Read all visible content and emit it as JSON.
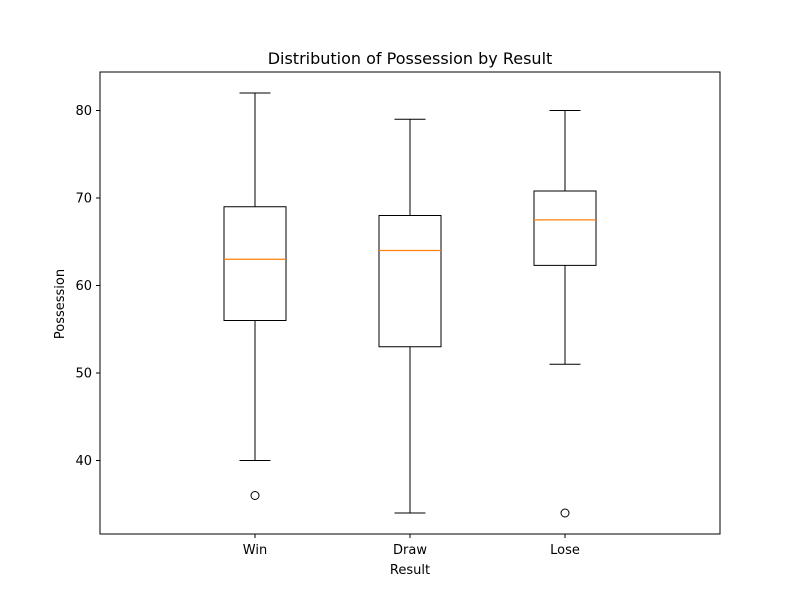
{
  "chart_data": {
    "type": "box",
    "title": "Distribution of Possession by Result",
    "xlabel": "Result",
    "ylabel": "Possession",
    "ylim": [
      31.6,
      84.4
    ],
    "yticks": [
      40,
      50,
      60,
      70,
      80
    ],
    "ytick_labels": [
      "40",
      "50",
      "60",
      "70",
      "80"
    ],
    "grid": false,
    "categories": [
      "Win",
      "Draw",
      "Lose"
    ],
    "boxes": [
      {
        "category": "Win",
        "whisker_low": 40,
        "q1": 56,
        "median": 63,
        "q3": 69,
        "whisker_high": 82,
        "outliers": [
          36
        ]
      },
      {
        "category": "Draw",
        "whisker_low": 34,
        "q1": 53,
        "median": 64,
        "q3": 68,
        "whisker_high": 79,
        "outliers": []
      },
      {
        "category": "Lose",
        "whisker_low": 51,
        "q1": 62.3,
        "median": 67.5,
        "q3": 70.8,
        "whisker_high": 80,
        "outliers": [
          34
        ]
      }
    ],
    "colors": {
      "box": "#000000",
      "median": "#ff7f0e",
      "background": "#ffffff"
    }
  }
}
